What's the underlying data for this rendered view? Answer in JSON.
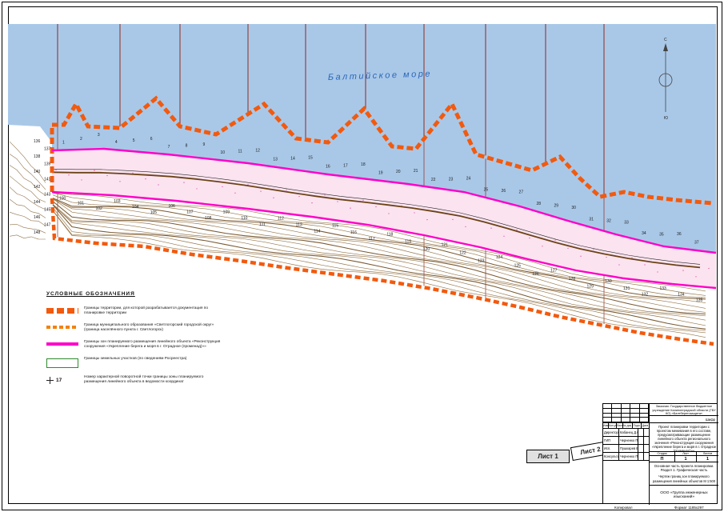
{
  "page": {
    "copied_label": "Копировал",
    "format_label": "Формат 1185х297"
  },
  "map": {
    "sea_label": "Балтийское море",
    "compass": {
      "north": "С",
      "south": "Ю"
    },
    "upper_points": [
      "1",
      "2",
      "3",
      "4",
      "5",
      "6",
      "7",
      "8",
      "9",
      "10",
      "11",
      "12",
      "13",
      "14",
      "15",
      "16",
      "17",
      "18",
      "19",
      "20",
      "21",
      "22",
      "23",
      "24",
      "25",
      "26",
      "27",
      "28",
      "29",
      "30",
      "31",
      "32",
      "33",
      "34",
      "35",
      "36",
      "37"
    ],
    "lower_points": [
      "100",
      "101",
      "102",
      "103",
      "104",
      "105",
      "106",
      "107",
      "108",
      "109",
      "110",
      "111",
      "112",
      "113",
      "114",
      "115",
      "116",
      "117",
      "118",
      "119",
      "120",
      "121",
      "122",
      "123",
      "124",
      "125",
      "126",
      "127",
      "128",
      "129",
      "130",
      "131",
      "132",
      "133",
      "134",
      "135"
    ],
    "left_points": [
      "136",
      "137",
      "138",
      "139",
      "140",
      "141",
      "142",
      "143",
      "144",
      "145",
      "146",
      "147",
      "148"
    ]
  },
  "legend": {
    "title": "УСЛОВНЫЕ ОБОЗНАЧЕНИЯ",
    "items": [
      {
        "type": "doc-boundary",
        "text": "Границы территории, для которой разрабатывается документация по планировке территории"
      },
      {
        "type": "municipal-boundary",
        "text": "Граница муниципального образования «Светлогорский городской округ» (граница населённого пункта г. Светлогорск)"
      },
      {
        "type": "linear-zone",
        "text": "Границы зон планируемого размещения линейного объекта «Реконструкция сооружения «Укрепление берега и моря в г. Отрадное (променад)»»"
      },
      {
        "type": "land-plots",
        "text": "Границы земельных участков (по сведениям Росреестра)"
      },
      {
        "type": "point-number",
        "label": "17",
        "text": "Номер характерной поворотной точки границы зоны планируемого размещения линейного объекта в ведомости координат"
      }
    ]
  },
  "sheet_tabs": {
    "sheet1": "Лист 1",
    "sheet2": "Лист 2"
  },
  "title_block": {
    "customer": "Заказчик: Государственное бюджетное учреждение Калининградской области (ГБУ КО) «Балтберегозащита»",
    "cipher": "Шифр",
    "columns": [
      "Изм.",
      "Кол.уч.",
      "Лист",
      "№ док.",
      "Подп.",
      "Дата"
    ],
    "staff": [
      [
        "Директор",
        "Кабанец Д.С."
      ],
      [
        "ГИП",
        "Черненко П.В."
      ],
      [
        "Исп.",
        "Пушкарев В.А."
      ],
      [
        "Консультант",
        "Черненко П.В."
      ]
    ],
    "project": "Проект планировки территории с проектом межевания в его составе, предусматривающие размещение линейного объекта регионального значения «Реконструкция сооружения «Укрепление берега и моря в г. Отрадное (променад)»»",
    "stage_label": "Стадия",
    "sheet_label": "Лист",
    "sheets_label": "Листов",
    "stage": "П",
    "sheet": "1",
    "sheets": "1",
    "section": "Основная часть проекта планировки. Раздел 1. Графическая часть",
    "drawing": "Чертеж границ зон планируемого размещения линейных объектов М 1:500",
    "org": "ООО «Группа инженерных изысканий»"
  }
}
